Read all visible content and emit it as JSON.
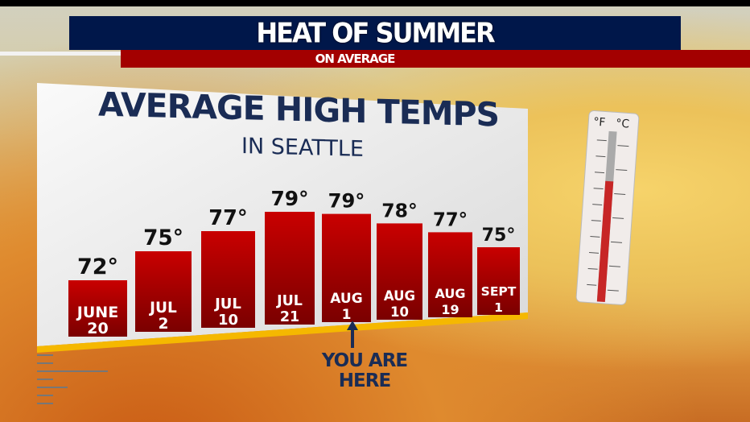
{
  "header": {
    "title": "HEAT OF SUMMER",
    "subtitle": "ON AVERAGE"
  },
  "colors": {
    "title_bar": "#00174a",
    "subtitle_bar": "#a30000",
    "bar": "#b30000",
    "text": "#1a2c55",
    "baseline": "#f5b800"
  },
  "thermometer": {
    "icon": "thermometer-icon",
    "units": [
      "°F",
      "°C"
    ]
  },
  "chart_data": {
    "type": "bar",
    "title": "AVERAGE HIGH TEMPS",
    "subtitle": "IN SEATTLE",
    "categories": [
      [
        "JUNE",
        "20"
      ],
      [
        "JUL",
        "2"
      ],
      [
        "JUL",
        "10"
      ],
      [
        "JUL",
        "21"
      ],
      [
        "AUG",
        "1"
      ],
      [
        "AUG",
        "10"
      ],
      [
        "AUG",
        "19"
      ],
      [
        "SEPT",
        "1"
      ]
    ],
    "values": [
      72,
      75,
      77,
      79,
      79,
      78,
      77,
      75
    ],
    "value_labels": [
      "72°",
      "75°",
      "77°",
      "79°",
      "79°",
      "78°",
      "77°",
      "75°"
    ],
    "annotation": {
      "category_index": 4,
      "lines": [
        "YOU ARE",
        "HERE"
      ]
    }
  }
}
